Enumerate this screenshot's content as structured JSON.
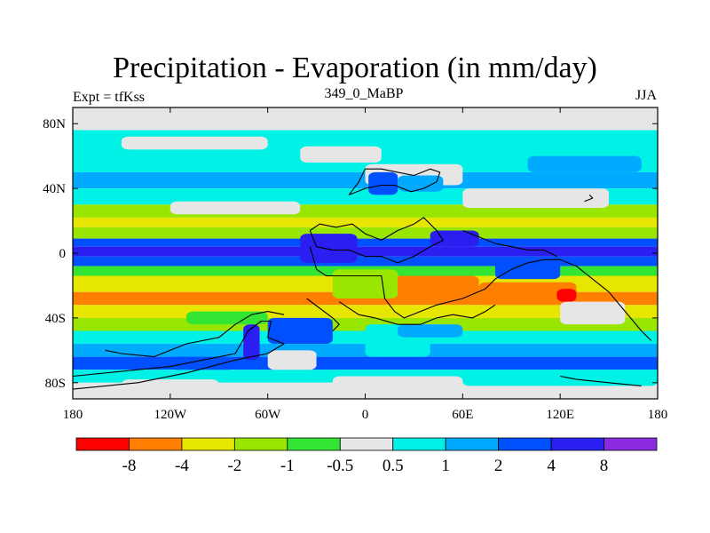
{
  "chart_data": {
    "type": "heatmap",
    "title": "Precipitation - Evaporation (in mm/day)",
    "left_label": "Expt = tfKss",
    "center_label": "349_0_MaBP",
    "right_label": "JJA",
    "x_ticks": [
      {
        "value": -180,
        "label": "180"
      },
      {
        "value": -120,
        "label": "120W"
      },
      {
        "value": -60,
        "label": "60W"
      },
      {
        "value": 0,
        "label": "0"
      },
      {
        "value": 60,
        "label": "60E"
      },
      {
        "value": 120,
        "label": "120E"
      },
      {
        "value": 180,
        "label": "180"
      }
    ],
    "y_ticks": [
      {
        "value": 80,
        "label": "80N"
      },
      {
        "value": 40,
        "label": "40N"
      },
      {
        "value": 0,
        "label": "0"
      },
      {
        "value": -40,
        "label": "40S"
      },
      {
        "value": -80,
        "label": "80S"
      }
    ],
    "xlim": [
      -180,
      180
    ],
    "ylim": [
      -90,
      90
    ],
    "colorbar": {
      "colors": [
        "#ff0000",
        "#ff8000",
        "#e6e600",
        "#99e600",
        "#33e633",
        "#e6e6e6",
        "#00f2e6",
        "#00aaff",
        "#0050ff",
        "#2b1ef0",
        "#8a2be2"
      ],
      "labels": [
        "-8",
        "-4",
        "-2",
        "-1",
        "-0.5",
        "0.5",
        "1",
        "2",
        "4",
        "8"
      ]
    },
    "zonal_bands": [
      {
        "lat": [
          76,
          90
        ],
        "color": "#e6e6e6"
      },
      {
        "lat": [
          62,
          76
        ],
        "color": "#00f2e6"
      },
      {
        "lat": [
          50,
          62
        ],
        "color": "#00f2e6"
      },
      {
        "lat": [
          40,
          50
        ],
        "color": "#00aaff"
      },
      {
        "lat": [
          30,
          40
        ],
        "color": "#00f2e6"
      },
      {
        "lat": [
          22,
          30
        ],
        "color": "#99e600"
      },
      {
        "lat": [
          16,
          22
        ],
        "color": "#e6e600"
      },
      {
        "lat": [
          9,
          16
        ],
        "color": "#99e600"
      },
      {
        "lat": [
          4,
          9
        ],
        "color": "#0050ff"
      },
      {
        "lat": [
          -2,
          4
        ],
        "color": "#2b1ef0"
      },
      {
        "lat": [
          -8,
          -2
        ],
        "color": "#0050ff"
      },
      {
        "lat": [
          -14,
          -8
        ],
        "color": "#33e633"
      },
      {
        "lat": [
          -24,
          -14
        ],
        "color": "#e6e600"
      },
      {
        "lat": [
          -32,
          -24
        ],
        "color": "#ff8000"
      },
      {
        "lat": [
          -40,
          -32
        ],
        "color": "#e6e600"
      },
      {
        "lat": [
          -48,
          -40
        ],
        "color": "#99e600"
      },
      {
        "lat": [
          -56,
          -48
        ],
        "color": "#00f2e6"
      },
      {
        "lat": [
          -64,
          -56
        ],
        "color": "#00aaff"
      },
      {
        "lat": [
          -72,
          -64
        ],
        "color": "#0050ff"
      },
      {
        "lat": [
          -80,
          -72
        ],
        "color": "#00f2e6"
      },
      {
        "lat": [
          -90,
          -80
        ],
        "color": "#e6e6e6"
      }
    ],
    "regions": [
      {
        "lon": [
          -180,
          180
        ],
        "lat": [
          82,
          90
        ],
        "color": "#e6e6e6"
      },
      {
        "lon": [
          -150,
          -60
        ],
        "lat": [
          64,
          72
        ],
        "color": "#e6e6e6"
      },
      {
        "lon": [
          -40,
          10
        ],
        "lat": [
          56,
          66
        ],
        "color": "#e6e6e6"
      },
      {
        "lon": [
          100,
          170
        ],
        "lat": [
          50,
          60
        ],
        "color": "#00aaff"
      },
      {
        "lon": [
          0,
          60
        ],
        "lat": [
          42,
          55
        ],
        "color": "#e6e6e6"
      },
      {
        "lon": [
          2,
          20
        ],
        "lat": [
          36,
          50
        ],
        "color": "#0050ff"
      },
      {
        "lon": [
          20,
          48
        ],
        "lat": [
          38,
          48
        ],
        "color": "#00aaff"
      },
      {
        "lon": [
          60,
          150
        ],
        "lat": [
          28,
          40
        ],
        "color": "#e6e6e6"
      },
      {
        "lon": [
          -120,
          -40
        ],
        "lat": [
          24,
          32
        ],
        "color": "#e6e6e6"
      },
      {
        "lon": [
          -40,
          -5
        ],
        "lat": [
          -6,
          12
        ],
        "color": "#2b1ef0"
      },
      {
        "lon": [
          40,
          70
        ],
        "lat": [
          4,
          14
        ],
        "color": "#2b1ef0"
      },
      {
        "lon": [
          80,
          120
        ],
        "lat": [
          -16,
          -4
        ],
        "color": "#0050ff"
      },
      {
        "lon": [
          18,
          70
        ],
        "lat": [
          -26,
          -14
        ],
        "color": "#ff8000"
      },
      {
        "lon": [
          70,
          130
        ],
        "lat": [
          -32,
          -18
        ],
        "color": "#ff8000"
      },
      {
        "lon": [
          118,
          130
        ],
        "lat": [
          -30,
          -22
        ],
        "color": "#ff0000"
      },
      {
        "lon": [
          120,
          160
        ],
        "lat": [
          -44,
          -30
        ],
        "color": "#e6e6e6"
      },
      {
        "lon": [
          -20,
          20
        ],
        "lat": [
          -28,
          -10
        ],
        "color": "#99e600"
      },
      {
        "lon": [
          -110,
          -60
        ],
        "lat": [
          -44,
          -36
        ],
        "color": "#33e633"
      },
      {
        "lon": [
          -60,
          -20
        ],
        "lat": [
          -56,
          -40
        ],
        "color": "#0050ff"
      },
      {
        "lon": [
          -75,
          -65
        ],
        "lat": [
          -66,
          -44
        ],
        "color": "#2b1ef0"
      },
      {
        "lon": [
          -120,
          -80
        ],
        "lat": [
          -72,
          -64
        ],
        "color": "#0050ff"
      },
      {
        "lon": [
          -60,
          -30
        ],
        "lat": [
          -72,
          -60
        ],
        "color": "#e6e6e6"
      },
      {
        "lon": [
          0,
          40
        ],
        "lat": [
          -64,
          -44
        ],
        "color": "#00f2e6"
      },
      {
        "lon": [
          20,
          60
        ],
        "lat": [
          -52,
          -44
        ],
        "color": "#00aaff"
      },
      {
        "lon": [
          60,
          180
        ],
        "lat": [
          -82,
          -72
        ],
        "color": "#00f2e6"
      },
      {
        "lon": [
          -150,
          -90
        ],
        "lat": [
          -86,
          -78
        ],
        "color": "#e6e6e6"
      },
      {
        "lon": [
          -20,
          60
        ],
        "lat": [
          -84,
          -76
        ],
        "color": "#e6e6e6"
      }
    ],
    "coastlines": [
      [
        [
          -180,
          -76
        ],
        [
          -140,
          -72
        ],
        [
          -120,
          -70
        ],
        [
          -100,
          -66
        ],
        [
          -80,
          -62
        ],
        [
          -72,
          -48
        ],
        [
          -64,
          -42
        ],
        [
          -58,
          -42
        ],
        [
          -60,
          -52
        ],
        [
          -50,
          -56
        ],
        [
          -60,
          -62
        ],
        [
          -80,
          -66
        ],
        [
          -110,
          -74
        ],
        [
          -140,
          -80
        ],
        [
          -180,
          -84
        ]
      ],
      [
        [
          -10,
          36
        ],
        [
          -4,
          44
        ],
        [
          0,
          52
        ],
        [
          10,
          52
        ],
        [
          20,
          50
        ],
        [
          30,
          48
        ],
        [
          40,
          52
        ],
        [
          46,
          50
        ],
        [
          44,
          44
        ],
        [
          36,
          40
        ],
        [
          28,
          38
        ],
        [
          18,
          42
        ],
        [
          10,
          42
        ],
        [
          0,
          40
        ],
        [
          -10,
          36
        ]
      ],
      [
        [
          -34,
          14
        ],
        [
          -28,
          18
        ],
        [
          -18,
          16
        ],
        [
          -8,
          18
        ],
        [
          0,
          12
        ],
        [
          10,
          8
        ],
        [
          20,
          14
        ],
        [
          30,
          18
        ],
        [
          36,
          22
        ],
        [
          44,
          14
        ],
        [
          48,
          8
        ],
        [
          40,
          4
        ],
        [
          30,
          -2
        ],
        [
          20,
          -6
        ],
        [
          10,
          -2
        ],
        [
          0,
          -2
        ],
        [
          -10,
          2
        ],
        [
          -20,
          2
        ],
        [
          -30,
          4
        ],
        [
          -34,
          14
        ]
      ],
      [
        [
          -34,
          4
        ],
        [
          -30,
          -10
        ],
        [
          -24,
          -14
        ],
        [
          -10,
          -14
        ],
        [
          10,
          -14
        ],
        [
          12,
          -28
        ],
        [
          18,
          -36
        ],
        [
          24,
          -40
        ],
        [
          34,
          -36
        ],
        [
          44,
          -32
        ],
        [
          60,
          -28
        ],
        [
          74,
          -22
        ],
        [
          80,
          -16
        ],
        [
          90,
          -10
        ],
        [
          100,
          -6
        ],
        [
          110,
          -4
        ],
        [
          120,
          -4
        ],
        [
          130,
          -8
        ],
        [
          140,
          -16
        ],
        [
          150,
          -24
        ],
        [
          160,
          -36
        ],
        [
          170,
          -48
        ],
        [
          176,
          -54
        ]
      ],
      [
        [
          -16,
          -30
        ],
        [
          -4,
          -38
        ],
        [
          6,
          -40
        ],
        [
          20,
          -44
        ],
        [
          34,
          -44
        ],
        [
          44,
          -40
        ],
        [
          54,
          -38
        ],
        [
          66,
          -40
        ],
        [
          74,
          -36
        ],
        [
          80,
          -32
        ]
      ],
      [
        [
          -160,
          -60
        ],
        [
          -150,
          -62
        ],
        [
          -130,
          -64
        ],
        [
          -110,
          -56
        ],
        [
          -90,
          -52
        ],
        [
          -80,
          -44
        ],
        [
          -70,
          -38
        ],
        [
          -60,
          -36
        ],
        [
          -50,
          -38
        ]
      ],
      [
        [
          120,
          -76
        ],
        [
          130,
          -78
        ],
        [
          150,
          -80
        ],
        [
          170,
          -82
        ]
      ],
      [
        [
          60,
          14
        ],
        [
          70,
          10
        ],
        [
          80,
          6
        ],
        [
          90,
          4
        ],
        [
          100,
          2
        ],
        [
          110,
          2
        ],
        [
          118,
          -2
        ]
      ],
      [
        [
          -36,
          -28
        ],
        [
          -20,
          -40
        ],
        [
          -16,
          -44
        ],
        [
          -20,
          -48
        ]
      ],
      [
        [
          135,
          32
        ],
        [
          140,
          34
        ],
        [
          138,
          36
        ]
      ]
    ]
  }
}
